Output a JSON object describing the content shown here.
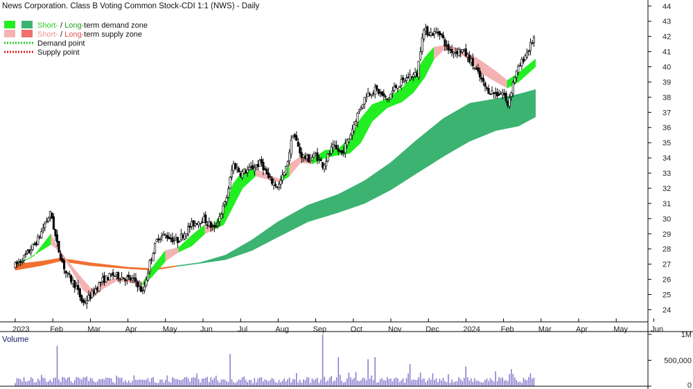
{
  "chart_data": {
    "type": "candlestick",
    "title": "News Corporation. Class B Voting Common Stock-CDI 1:1 (NWS) - Daily",
    "legend": {
      "placement": "top-left",
      "entries": [
        {
          "text_a": "Short-",
          "sep": " / ",
          "text_b": "Long-",
          "text_c": "term demand zone",
          "short_color": "#22ee22",
          "long_color": "#3cb371",
          "color_a": "#22cc22",
          "color_b": "#229922"
        },
        {
          "text_a": "Short-",
          "sep": " / ",
          "text_b": "Long-",
          "text_c": "term supply zone",
          "short_color": "#f4b3b3",
          "long_color": "#f07070",
          "color_a": "#f09090",
          "color_b": "#e05050"
        },
        {
          "text": "Demand point",
          "line_color": "#22cc22"
        },
        {
          "text": "Supply point",
          "line_color": "#dd2222"
        }
      ]
    },
    "x_ticks": [
      "2023",
      "Feb",
      "Mar",
      "Apr",
      "May",
      "Jun",
      "Jul",
      "Aug",
      "Sep",
      "Oct",
      "Nov",
      "Dec",
      "2024",
      "Feb",
      "Mar",
      "Apr",
      "May",
      "Jun"
    ],
    "y_ticks": [
      24,
      25,
      26,
      27,
      28,
      29,
      30,
      31,
      32,
      33,
      34,
      35,
      36,
      37,
      38,
      39,
      40,
      41,
      42,
      43,
      44
    ],
    "ylim": [
      23.2,
      44.4
    ],
    "grid": false,
    "price_path": [
      {
        "m": 0.0,
        "p": 26.9
      },
      {
        "m": 0.3,
        "p": 27.6
      },
      {
        "m": 0.6,
        "p": 28.6
      },
      {
        "m": 0.8,
        "p": 29.7
      },
      {
        "m": 0.95,
        "p": 30.4
      },
      {
        "m": 1.1,
        "p": 28.4
      },
      {
        "m": 1.35,
        "p": 26.4
      },
      {
        "m": 1.6,
        "p": 25.6
      },
      {
        "m": 1.8,
        "p": 24.4
      },
      {
        "m": 2.0,
        "p": 24.9
      },
      {
        "m": 2.3,
        "p": 25.9
      },
      {
        "m": 2.6,
        "p": 26.3
      },
      {
        "m": 2.9,
        "p": 26.1
      },
      {
        "m": 3.2,
        "p": 25.9
      },
      {
        "m": 3.4,
        "p": 25.1
      },
      {
        "m": 3.6,
        "p": 27.3
      },
      {
        "m": 3.8,
        "p": 28.8
      },
      {
        "m": 4.0,
        "p": 28.9
      },
      {
        "m": 4.3,
        "p": 28.5
      },
      {
        "m": 4.7,
        "p": 29.6
      },
      {
        "m": 5.0,
        "p": 30.0
      },
      {
        "m": 5.3,
        "p": 29.3
      },
      {
        "m": 5.6,
        "p": 31.1
      },
      {
        "m": 5.8,
        "p": 33.6
      },
      {
        "m": 6.0,
        "p": 33.0
      },
      {
        "m": 6.3,
        "p": 33.3
      },
      {
        "m": 6.55,
        "p": 33.7
      },
      {
        "m": 6.75,
        "p": 32.6
      },
      {
        "m": 7.0,
        "p": 32.1
      },
      {
        "m": 7.2,
        "p": 33.2
      },
      {
        "m": 7.4,
        "p": 35.7
      },
      {
        "m": 7.6,
        "p": 34.2
      },
      {
        "m": 7.8,
        "p": 33.9
      },
      {
        "m": 8.0,
        "p": 34.2
      },
      {
        "m": 8.2,
        "p": 33.5
      },
      {
        "m": 8.45,
        "p": 34.7
      },
      {
        "m": 8.7,
        "p": 34.3
      },
      {
        "m": 8.9,
        "p": 35.4
      },
      {
        "m": 9.1,
        "p": 36.8
      },
      {
        "m": 9.35,
        "p": 38.2
      },
      {
        "m": 9.6,
        "p": 38.5
      },
      {
        "m": 9.9,
        "p": 37.8
      },
      {
        "m": 10.1,
        "p": 38.6
      },
      {
        "m": 10.35,
        "p": 39.1
      },
      {
        "m": 10.5,
        "p": 39.4
      },
      {
        "m": 10.7,
        "p": 39.5
      },
      {
        "m": 10.85,
        "p": 42.4
      },
      {
        "m": 11.1,
        "p": 42.2
      },
      {
        "m": 11.3,
        "p": 42.3
      },
      {
        "m": 11.5,
        "p": 41.2
      },
      {
        "m": 11.7,
        "p": 41.0
      },
      {
        "m": 11.9,
        "p": 41.1
      },
      {
        "m": 12.1,
        "p": 40.5
      },
      {
        "m": 12.35,
        "p": 39.4
      },
      {
        "m": 12.55,
        "p": 38.5
      },
      {
        "m": 12.8,
        "p": 38.2
      },
      {
        "m": 13.0,
        "p": 38.3
      },
      {
        "m": 13.1,
        "p": 37.4
      },
      {
        "m": 13.3,
        "p": 39.4
      },
      {
        "m": 13.5,
        "p": 40.4
      },
      {
        "m": 13.7,
        "p": 41.3
      },
      {
        "m": 13.85,
        "p": 42.1
      }
    ],
    "short_band": [
      {
        "m": 0.0,
        "a": 26.9,
        "b": 26.9,
        "zone": "supply"
      },
      {
        "m": 0.5,
        "a": 27.55,
        "b": 27.6,
        "zone": "demand"
      },
      {
        "m": 0.95,
        "a": 29.0,
        "b": 28.3,
        "zone": "demand"
      },
      {
        "m": 1.15,
        "a": 28.0,
        "b": 27.9,
        "zone": "supply"
      },
      {
        "m": 1.5,
        "a": 26.9,
        "b": 26.6,
        "zone": "supply"
      },
      {
        "m": 1.8,
        "a": 26.0,
        "b": 25.3,
        "zone": "supply"
      },
      {
        "m": 2.05,
        "a": 25.3,
        "b": 24.8,
        "zone": "supply"
      },
      {
        "m": 2.35,
        "a": 25.8,
        "b": 25.4,
        "zone": "supply"
      },
      {
        "m": 2.7,
        "a": 26.1,
        "b": 25.9,
        "zone": "supply"
      },
      {
        "m": 3.1,
        "a": 26.0,
        "b": 25.8,
        "zone": "supply"
      },
      {
        "m": 3.4,
        "a": 25.8,
        "b": 25.6,
        "zone": "supply"
      },
      {
        "m": 3.65,
        "a": 26.8,
        "b": 26.2,
        "zone": "demand"
      },
      {
        "m": 4.0,
        "a": 27.9,
        "b": 27.2,
        "zone": "demand"
      },
      {
        "m": 4.35,
        "a": 28.1,
        "b": 27.8,
        "zone": "supply"
      },
      {
        "m": 4.7,
        "a": 28.9,
        "b": 28.2,
        "zone": "demand"
      },
      {
        "m": 5.05,
        "a": 29.6,
        "b": 29.0,
        "zone": "demand"
      },
      {
        "m": 5.3,
        "a": 29.6,
        "b": 29.3,
        "zone": "supply"
      },
      {
        "m": 5.55,
        "a": 30.7,
        "b": 29.6,
        "zone": "demand"
      },
      {
        "m": 5.8,
        "a": 32.3,
        "b": 30.8,
        "zone": "demand"
      },
      {
        "m": 6.05,
        "a": 33.1,
        "b": 32.0,
        "zone": "demand"
      },
      {
        "m": 6.4,
        "a": 33.3,
        "b": 32.8,
        "zone": "demand"
      },
      {
        "m": 6.7,
        "a": 32.9,
        "b": 32.6,
        "zone": "supply"
      },
      {
        "m": 7.05,
        "a": 32.6,
        "b": 32.4,
        "zone": "supply"
      },
      {
        "m": 7.3,
        "a": 33.6,
        "b": 32.8,
        "zone": "demand"
      },
      {
        "m": 7.6,
        "a": 34.1,
        "b": 33.7,
        "zone": "supply"
      },
      {
        "m": 7.9,
        "a": 33.9,
        "b": 33.6,
        "zone": "supply"
      },
      {
        "m": 8.25,
        "a": 34.5,
        "b": 34.0,
        "zone": "demand"
      },
      {
        "m": 8.6,
        "a": 34.6,
        "b": 34.2,
        "zone": "demand"
      },
      {
        "m": 8.9,
        "a": 35.3,
        "b": 34.3,
        "zone": "demand"
      },
      {
        "m": 9.2,
        "a": 36.6,
        "b": 35.0,
        "zone": "demand"
      },
      {
        "m": 9.5,
        "a": 37.5,
        "b": 36.4,
        "zone": "demand"
      },
      {
        "m": 9.9,
        "a": 37.9,
        "b": 37.3,
        "zone": "demand"
      },
      {
        "m": 10.3,
        "a": 38.6,
        "b": 37.7,
        "zone": "demand"
      },
      {
        "m": 10.6,
        "a": 39.4,
        "b": 38.3,
        "zone": "demand"
      },
      {
        "m": 10.9,
        "a": 40.6,
        "b": 39.3,
        "zone": "demand"
      },
      {
        "m": 11.15,
        "a": 41.3,
        "b": 40.5,
        "zone": "demand"
      },
      {
        "m": 11.4,
        "a": 41.4,
        "b": 41.1,
        "zone": "supply"
      },
      {
        "m": 11.7,
        "a": 41.3,
        "b": 41.1,
        "zone": "supply"
      },
      {
        "m": 12.0,
        "a": 41.0,
        "b": 40.6,
        "zone": "supply"
      },
      {
        "m": 12.4,
        "a": 40.4,
        "b": 39.6,
        "zone": "supply"
      },
      {
        "m": 12.8,
        "a": 39.7,
        "b": 39.0,
        "zone": "supply"
      },
      {
        "m": 13.1,
        "a": 39.1,
        "b": 38.6,
        "zone": "supply"
      },
      {
        "m": 13.4,
        "a": 39.6,
        "b": 39.0,
        "zone": "demand"
      },
      {
        "m": 13.85,
        "a": 40.5,
        "b": 40.0,
        "zone": "demand"
      }
    ],
    "long_band": [
      {
        "m": 0.0,
        "a": 27.0,
        "b": 26.6,
        "zone": "supply"
      },
      {
        "m": 0.7,
        "a": 27.2,
        "b": 26.9,
        "zone": "supply"
      },
      {
        "m": 1.2,
        "a": 27.4,
        "b": 27.2,
        "zone": "supply"
      },
      {
        "m": 2.0,
        "a": 27.1,
        "b": 26.9,
        "zone": "supply"
      },
      {
        "m": 3.0,
        "a": 26.8,
        "b": 26.7,
        "zone": "supply"
      },
      {
        "m": 3.7,
        "a": 26.7,
        "b": 26.6,
        "zone": "supply"
      },
      {
        "m": 4.3,
        "a": 26.9,
        "b": 26.85,
        "zone": "supply"
      },
      {
        "m": 4.9,
        "a": 27.1,
        "b": 27.05,
        "zone": "demand"
      },
      {
        "m": 5.6,
        "a": 27.6,
        "b": 27.3,
        "zone": "demand"
      },
      {
        "m": 6.3,
        "a": 28.6,
        "b": 27.9,
        "zone": "demand"
      },
      {
        "m": 7.0,
        "a": 29.8,
        "b": 28.8,
        "zone": "demand"
      },
      {
        "m": 7.8,
        "a": 30.9,
        "b": 29.8,
        "zone": "demand"
      },
      {
        "m": 8.6,
        "a": 31.6,
        "b": 30.4,
        "zone": "demand"
      },
      {
        "m": 9.3,
        "a": 32.5,
        "b": 31.0,
        "zone": "demand"
      },
      {
        "m": 10.0,
        "a": 33.7,
        "b": 31.9,
        "zone": "demand"
      },
      {
        "m": 10.7,
        "a": 35.2,
        "b": 33.0,
        "zone": "demand"
      },
      {
        "m": 11.4,
        "a": 36.6,
        "b": 34.1,
        "zone": "demand"
      },
      {
        "m": 12.1,
        "a": 37.6,
        "b": 35.1,
        "zone": "demand"
      },
      {
        "m": 12.8,
        "a": 37.9,
        "b": 35.8,
        "zone": "demand"
      },
      {
        "m": 13.4,
        "a": 38.2,
        "b": 36.1,
        "zone": "demand"
      },
      {
        "m": 13.85,
        "a": 38.5,
        "b": 36.7,
        "zone": "demand"
      }
    ],
    "colors": {
      "short_demand": "#22ee22",
      "long_demand": "#3cb371",
      "short_supply": "#f4b3b3",
      "long_supply": "#f07030",
      "candle": "#000000",
      "volume_bar": "#8a7fd0"
    },
    "volume": {
      "title": "Volume",
      "y_ticks": [
        {
          "v": 0,
          "label": "0"
        },
        {
          "v": 500000,
          "label": "500,000"
        },
        {
          "v": 1000000,
          "label": "1M"
        }
      ],
      "ylim": [
        0,
        1000000
      ],
      "spikes": [
        {
          "m": 1.1,
          "v": 780000
        },
        {
          "m": 5.7,
          "v": 620000
        },
        {
          "m": 8.2,
          "v": 1000000
        },
        {
          "m": 8.6,
          "v": 560000
        },
        {
          "m": 9.4,
          "v": 520000
        },
        {
          "m": 9.6,
          "v": 560000
        },
        {
          "m": 10.5,
          "v": 430000
        },
        {
          "m": 12.0,
          "v": 380000
        },
        {
          "m": 13.2,
          "v": 330000
        }
      ]
    }
  }
}
